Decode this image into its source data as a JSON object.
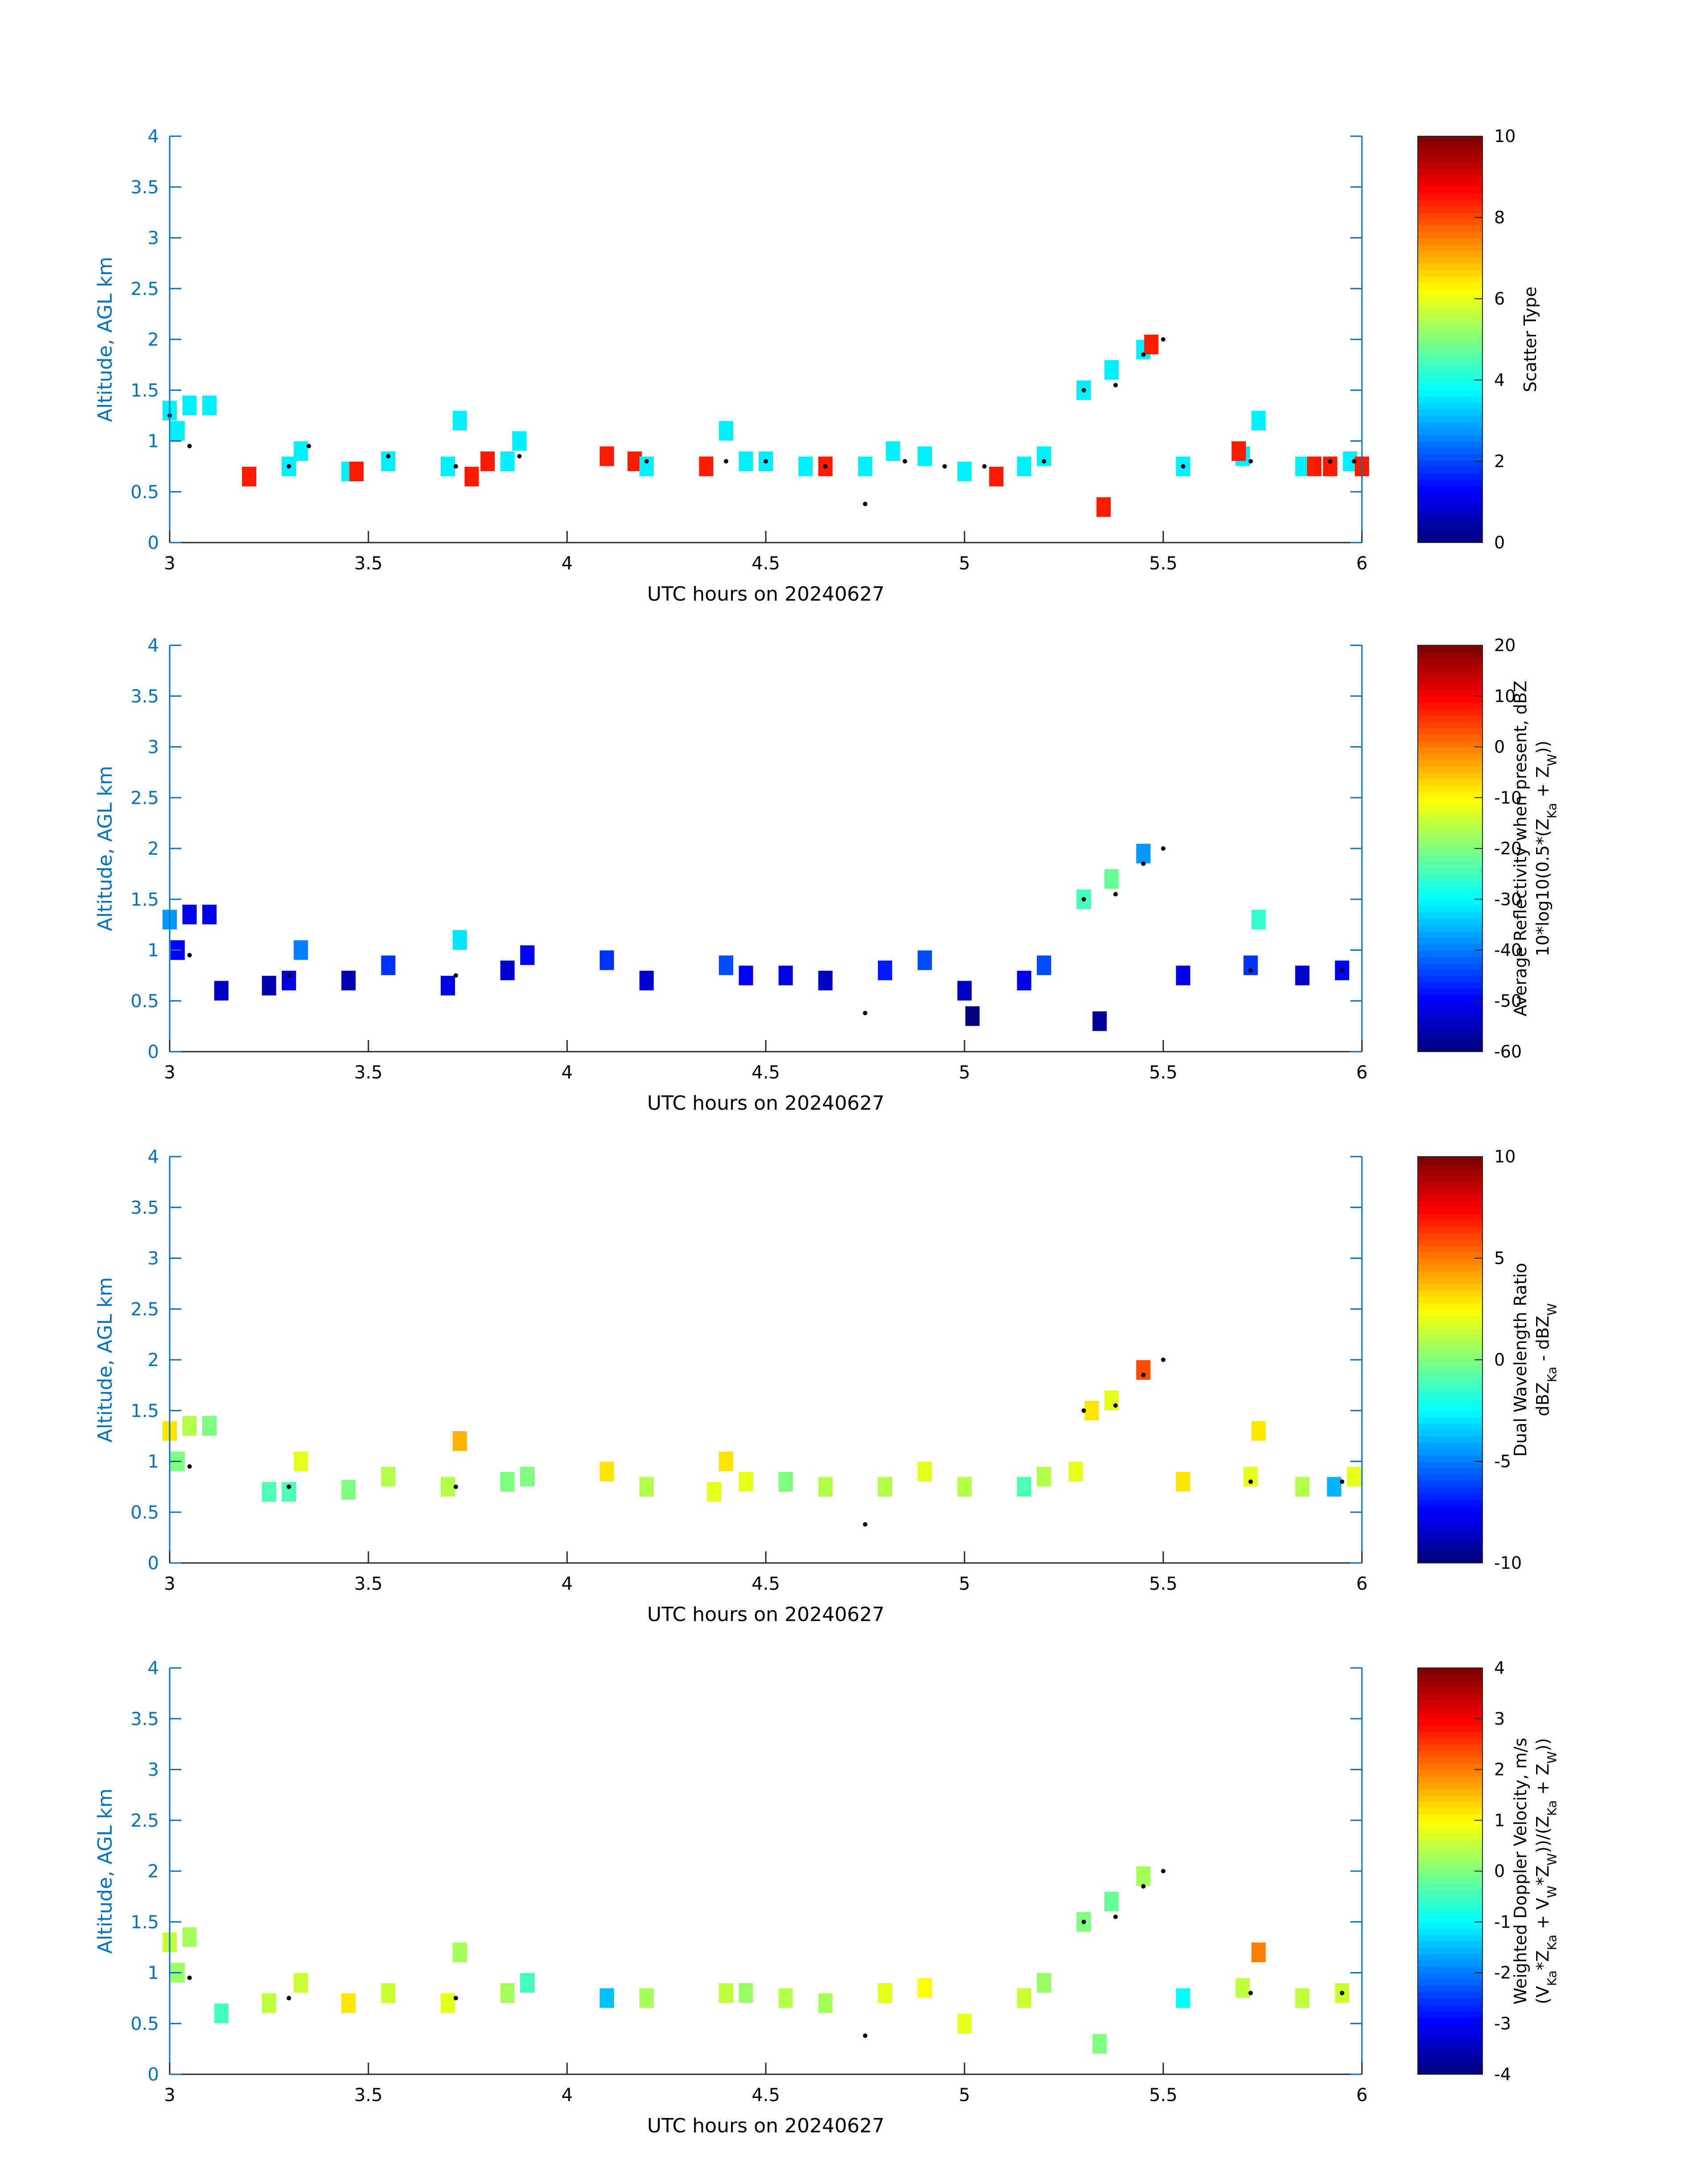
{
  "figure": {
    "date_label": "UTC hours on 20240627"
  },
  "chart_data": [
    {
      "type": "heatmap",
      "panel": "scatter-type",
      "xlabel": "UTC hours on 20240627",
      "ylabel": "Altitude, AGL km",
      "xlim": [
        3,
        6
      ],
      "ylim": [
        0,
        4
      ],
      "xticks": [
        "3",
        "3.5",
        "4",
        "4.5",
        "5",
        "5.5",
        "6"
      ],
      "yticks": [
        "0",
        "0.5",
        "1",
        "1.5",
        "2",
        "2.5",
        "3",
        "3.5",
        "4"
      ],
      "colorbar": {
        "label_lines": [
          "Scatter Type"
        ],
        "ticks": [
          "0",
          "2",
          "4",
          "6",
          "8",
          "10"
        ],
        "range": [
          0,
          10
        ],
        "colormap": "jet"
      },
      "cells": [
        [
          3.0,
          1.3,
          3.6
        ],
        [
          3.02,
          1.1,
          3.6
        ],
        [
          3.05,
          1.35,
          3.6
        ],
        [
          3.1,
          1.35,
          3.6
        ],
        [
          3.2,
          0.65,
          8.5
        ],
        [
          3.3,
          0.75,
          3.6
        ],
        [
          3.33,
          0.9,
          3.6
        ],
        [
          3.45,
          0.7,
          3.6
        ],
        [
          3.47,
          0.7,
          8.5
        ],
        [
          3.55,
          0.8,
          3.6
        ],
        [
          3.7,
          0.75,
          3.6
        ],
        [
          3.73,
          1.2,
          3.6
        ],
        [
          3.76,
          0.65,
          8.5
        ],
        [
          3.8,
          0.8,
          8.5
        ],
        [
          3.85,
          0.8,
          3.6
        ],
        [
          3.88,
          1.0,
          3.6
        ],
        [
          4.1,
          0.85,
          8.5
        ],
        [
          4.17,
          0.8,
          8.5
        ],
        [
          4.2,
          0.75,
          3.6
        ],
        [
          4.35,
          0.75,
          8.5
        ],
        [
          4.4,
          1.1,
          3.6
        ],
        [
          4.45,
          0.8,
          3.6
        ],
        [
          4.5,
          0.8,
          3.6
        ],
        [
          4.6,
          0.75,
          3.6
        ],
        [
          4.65,
          0.75,
          8.5
        ],
        [
          4.75,
          0.75,
          3.6
        ],
        [
          4.82,
          0.9,
          3.6
        ],
        [
          4.9,
          0.85,
          3.6
        ],
        [
          5.0,
          0.7,
          3.6
        ],
        [
          5.08,
          0.65,
          8.5
        ],
        [
          5.15,
          0.75,
          3.6
        ],
        [
          5.2,
          0.85,
          3.6
        ],
        [
          5.3,
          1.5,
          3.6
        ],
        [
          5.37,
          1.7,
          3.6
        ],
        [
          5.45,
          1.9,
          3.6
        ],
        [
          5.47,
          1.95,
          8.5
        ],
        [
          5.35,
          0.35,
          8.5
        ],
        [
          5.55,
          0.75,
          3.6
        ],
        [
          5.7,
          0.85,
          3.6
        ],
        [
          5.74,
          1.2,
          3.6
        ],
        [
          5.69,
          0.9,
          8.5
        ],
        [
          5.85,
          0.75,
          3.6
        ],
        [
          5.88,
          0.75,
          8.5
        ],
        [
          5.92,
          0.75,
          8.5
        ],
        [
          5.97,
          0.8,
          3.6
        ],
        [
          6.0,
          0.75,
          8.5
        ]
      ],
      "centroid_points": [
        [
          3.0,
          1.25
        ],
        [
          3.05,
          0.95
        ],
        [
          3.3,
          0.75
        ],
        [
          3.35,
          0.95
        ],
        [
          3.55,
          0.85
        ],
        [
          3.72,
          0.75
        ],
        [
          3.88,
          0.85
        ],
        [
          4.2,
          0.8
        ],
        [
          4.4,
          0.8
        ],
        [
          4.5,
          0.8
        ],
        [
          4.65,
          0.75
        ],
        [
          4.75,
          0.38
        ],
        [
          4.85,
          0.8
        ],
        [
          4.95,
          0.75
        ],
        [
          5.05,
          0.75
        ],
        [
          5.2,
          0.8
        ],
        [
          5.3,
          1.5
        ],
        [
          5.38,
          1.55
        ],
        [
          5.45,
          1.85
        ],
        [
          5.5,
          2.0
        ],
        [
          5.55,
          0.75
        ],
        [
          5.72,
          0.8
        ],
        [
          5.92,
          0.8
        ],
        [
          5.98,
          0.8
        ]
      ]
    },
    {
      "type": "heatmap",
      "panel": "reflectivity",
      "xlabel": "UTC hours on 20240627",
      "ylabel": "Altitude, AGL km",
      "xlim": [
        3,
        6
      ],
      "ylim": [
        0,
        4
      ],
      "xticks": [
        "3",
        "3.5",
        "4",
        "4.5",
        "5",
        "5.5",
        "6"
      ],
      "yticks": [
        "0",
        "0.5",
        "1",
        "1.5",
        "2",
        "2.5",
        "3",
        "3.5",
        "4"
      ],
      "colorbar": {
        "label_lines": [
          "Average Reflectivity when present, dBZ",
          "10*log10(0.5*(Z",
          "Ka",
          " + Z",
          "W",
          "))"
        ],
        "ticks": [
          "-60",
          "-50",
          "-40",
          "-30",
          "-20",
          "-10",
          "0",
          "10",
          "20"
        ],
        "range": [
          -60,
          20
        ],
        "colormap": "jet"
      },
      "cells": [
        [
          3.0,
          1.3,
          -38
        ],
        [
          3.02,
          1.0,
          -50
        ],
        [
          3.05,
          1.35,
          -52
        ],
        [
          3.1,
          1.35,
          -52
        ],
        [
          3.13,
          0.6,
          -55
        ],
        [
          3.25,
          0.65,
          -56
        ],
        [
          3.3,
          0.7,
          -52
        ],
        [
          3.33,
          1.0,
          -40
        ],
        [
          3.45,
          0.7,
          -56
        ],
        [
          3.55,
          0.85,
          -46
        ],
        [
          3.7,
          0.65,
          -52
        ],
        [
          3.73,
          1.1,
          -32
        ],
        [
          3.85,
          0.8,
          -54
        ],
        [
          3.9,
          0.95,
          -50
        ],
        [
          4.1,
          0.9,
          -46
        ],
        [
          4.2,
          0.7,
          -54
        ],
        [
          4.4,
          0.85,
          -44
        ],
        [
          4.45,
          0.75,
          -50
        ],
        [
          4.55,
          0.75,
          -52
        ],
        [
          4.65,
          0.7,
          -55
        ],
        [
          4.8,
          0.8,
          -48
        ],
        [
          4.9,
          0.9,
          -44
        ],
        [
          5.0,
          0.6,
          -55
        ],
        [
          5.02,
          0.35,
          -60
        ],
        [
          5.15,
          0.7,
          -52
        ],
        [
          5.2,
          0.85,
          -44
        ],
        [
          5.3,
          1.5,
          -25
        ],
        [
          5.37,
          1.7,
          -22
        ],
        [
          5.45,
          1.95,
          -38
        ],
        [
          5.34,
          0.3,
          -58
        ],
        [
          5.55,
          0.75,
          -52
        ],
        [
          5.72,
          0.85,
          -46
        ],
        [
          5.74,
          1.3,
          -26
        ],
        [
          5.85,
          0.75,
          -54
        ],
        [
          5.95,
          0.8,
          -50
        ]
      ],
      "centroid_points": [
        [
          3.05,
          0.95
        ],
        [
          3.3,
          0.75
        ],
        [
          3.72,
          0.75
        ],
        [
          4.75,
          0.38
        ],
        [
          5.3,
          1.5
        ],
        [
          5.38,
          1.55
        ],
        [
          5.45,
          1.85
        ],
        [
          5.5,
          2.0
        ],
        [
          5.72,
          0.8
        ],
        [
          5.95,
          0.8
        ]
      ]
    },
    {
      "type": "heatmap",
      "panel": "dual-wavelength-ratio",
      "xlabel": "UTC hours on 20240627",
      "ylabel": "Altitude, AGL km",
      "xlim": [
        3,
        6
      ],
      "ylim": [
        0,
        4
      ],
      "xticks": [
        "3",
        "3.5",
        "4",
        "4.5",
        "5",
        "5.5",
        "6"
      ],
      "yticks": [
        "0",
        "0.5",
        "1",
        "1.5",
        "2",
        "2.5",
        "3",
        "3.5",
        "4"
      ],
      "colorbar": {
        "label_lines": [
          "Dual Wavelength Ratio",
          "dBZ",
          "Ka",
          " - dBZ",
          "W"
        ],
        "ticks": [
          "-10",
          "-5",
          "0",
          "5",
          "10"
        ],
        "range": [
          -10,
          10
        ],
        "colormap": "jet"
      },
      "cells": [
        [
          3.0,
          1.3,
          3
        ],
        [
          3.02,
          1.0,
          0
        ],
        [
          3.05,
          1.35,
          1
        ],
        [
          3.1,
          1.35,
          0
        ],
        [
          3.25,
          0.7,
          -1
        ],
        [
          3.3,
          0.7,
          -1
        ],
        [
          3.33,
          1.0,
          2
        ],
        [
          3.45,
          0.72,
          0
        ],
        [
          3.55,
          0.85,
          1
        ],
        [
          3.7,
          0.75,
          1
        ],
        [
          3.73,
          1.2,
          4
        ],
        [
          3.85,
          0.8,
          0
        ],
        [
          3.9,
          0.85,
          0
        ],
        [
          4.1,
          0.9,
          3
        ],
        [
          4.2,
          0.75,
          1
        ],
        [
          4.37,
          0.7,
          2
        ],
        [
          4.4,
          1.0,
          3
        ],
        [
          4.45,
          0.8,
          2
        ],
        [
          4.55,
          0.8,
          0
        ],
        [
          4.65,
          0.75,
          1
        ],
        [
          4.8,
          0.75,
          1
        ],
        [
          4.9,
          0.9,
          2
        ],
        [
          5.0,
          0.75,
          1
        ],
        [
          5.15,
          0.75,
          -1
        ],
        [
          5.2,
          0.85,
          1
        ],
        [
          5.28,
          0.9,
          2
        ],
        [
          5.32,
          1.5,
          3
        ],
        [
          5.37,
          1.6,
          2
        ],
        [
          5.45,
          1.9,
          6
        ],
        [
          5.55,
          0.8,
          3
        ],
        [
          5.72,
          0.85,
          2
        ],
        [
          5.74,
          1.3,
          3
        ],
        [
          5.85,
          0.75,
          1
        ],
        [
          5.93,
          0.75,
          -4
        ],
        [
          5.98,
          0.85,
          2
        ]
      ],
      "centroid_points": [
        [
          3.05,
          0.95
        ],
        [
          3.3,
          0.75
        ],
        [
          3.72,
          0.75
        ],
        [
          4.75,
          0.38
        ],
        [
          5.3,
          1.5
        ],
        [
          5.38,
          1.55
        ],
        [
          5.45,
          1.85
        ],
        [
          5.5,
          2.0
        ],
        [
          5.72,
          0.8
        ],
        [
          5.95,
          0.8
        ]
      ]
    },
    {
      "type": "heatmap",
      "panel": "doppler-velocity",
      "xlabel": "UTC hours on 20240627",
      "ylabel": "Altitude, AGL km",
      "xlim": [
        3,
        6
      ],
      "ylim": [
        0,
        4
      ],
      "xticks": [
        "3",
        "3.5",
        "4",
        "4.5",
        "5",
        "5.5",
        "6"
      ],
      "yticks": [
        "0",
        "0.5",
        "1",
        "1.5",
        "2",
        "2.5",
        "3",
        "3.5",
        "4"
      ],
      "colorbar": {
        "label_lines": [
          "Weighted Doppler Velocity, m/s",
          "(V",
          "Ka",
          "*Z",
          "Ka",
          " + V",
          "W",
          "*Z",
          "W",
          "))/(Z",
          "Ka",
          " + Z",
          "W",
          "))"
        ],
        "ticks": [
          "-4",
          "-3",
          "-2",
          "-1",
          "0",
          "1",
          "2",
          "3",
          "4"
        ],
        "range": [
          -4,
          4
        ],
        "colormap": "jet"
      },
      "cells": [
        [
          3.0,
          1.3,
          0.5
        ],
        [
          3.02,
          1.0,
          0.2
        ],
        [
          3.05,
          1.35,
          0.3
        ],
        [
          3.13,
          0.6,
          -0.5
        ],
        [
          3.25,
          0.7,
          0.5
        ],
        [
          3.33,
          0.9,
          0.6
        ],
        [
          3.45,
          0.7,
          1.2
        ],
        [
          3.55,
          0.8,
          0.6
        ],
        [
          3.7,
          0.7,
          0.8
        ],
        [
          3.73,
          1.2,
          0.3
        ],
        [
          3.85,
          0.8,
          0.3
        ],
        [
          3.9,
          0.9,
          -0.5
        ],
        [
          4.1,
          0.75,
          -1.5
        ],
        [
          4.2,
          0.75,
          0.3
        ],
        [
          4.4,
          0.8,
          0.5
        ],
        [
          4.45,
          0.8,
          0.2
        ],
        [
          4.55,
          0.75,
          0.4
        ],
        [
          4.65,
          0.7,
          0.3
        ],
        [
          4.8,
          0.8,
          0.8
        ],
        [
          4.9,
          0.85,
          1.0
        ],
        [
          5.0,
          0.5,
          0.8
        ],
        [
          5.15,
          0.75,
          0.6
        ],
        [
          5.2,
          0.9,
          0.2
        ],
        [
          5.3,
          1.5,
          0.0
        ],
        [
          5.37,
          1.7,
          -0.2
        ],
        [
          5.45,
          1.95,
          0.3
        ],
        [
          5.34,
          0.3,
          0.0
        ],
        [
          5.55,
          0.75,
          -1.0
        ],
        [
          5.7,
          0.85,
          0.5
        ],
        [
          5.74,
          1.2,
          2.0
        ],
        [
          5.85,
          0.75,
          0.5
        ],
        [
          5.95,
          0.8,
          0.6
        ]
      ],
      "centroid_points": [
        [
          3.05,
          0.95
        ],
        [
          3.3,
          0.75
        ],
        [
          3.72,
          0.75
        ],
        [
          4.75,
          0.38
        ],
        [
          5.3,
          1.5
        ],
        [
          5.38,
          1.55
        ],
        [
          5.45,
          1.85
        ],
        [
          5.5,
          2.0
        ],
        [
          5.72,
          0.8
        ],
        [
          5.95,
          0.8
        ]
      ]
    }
  ]
}
